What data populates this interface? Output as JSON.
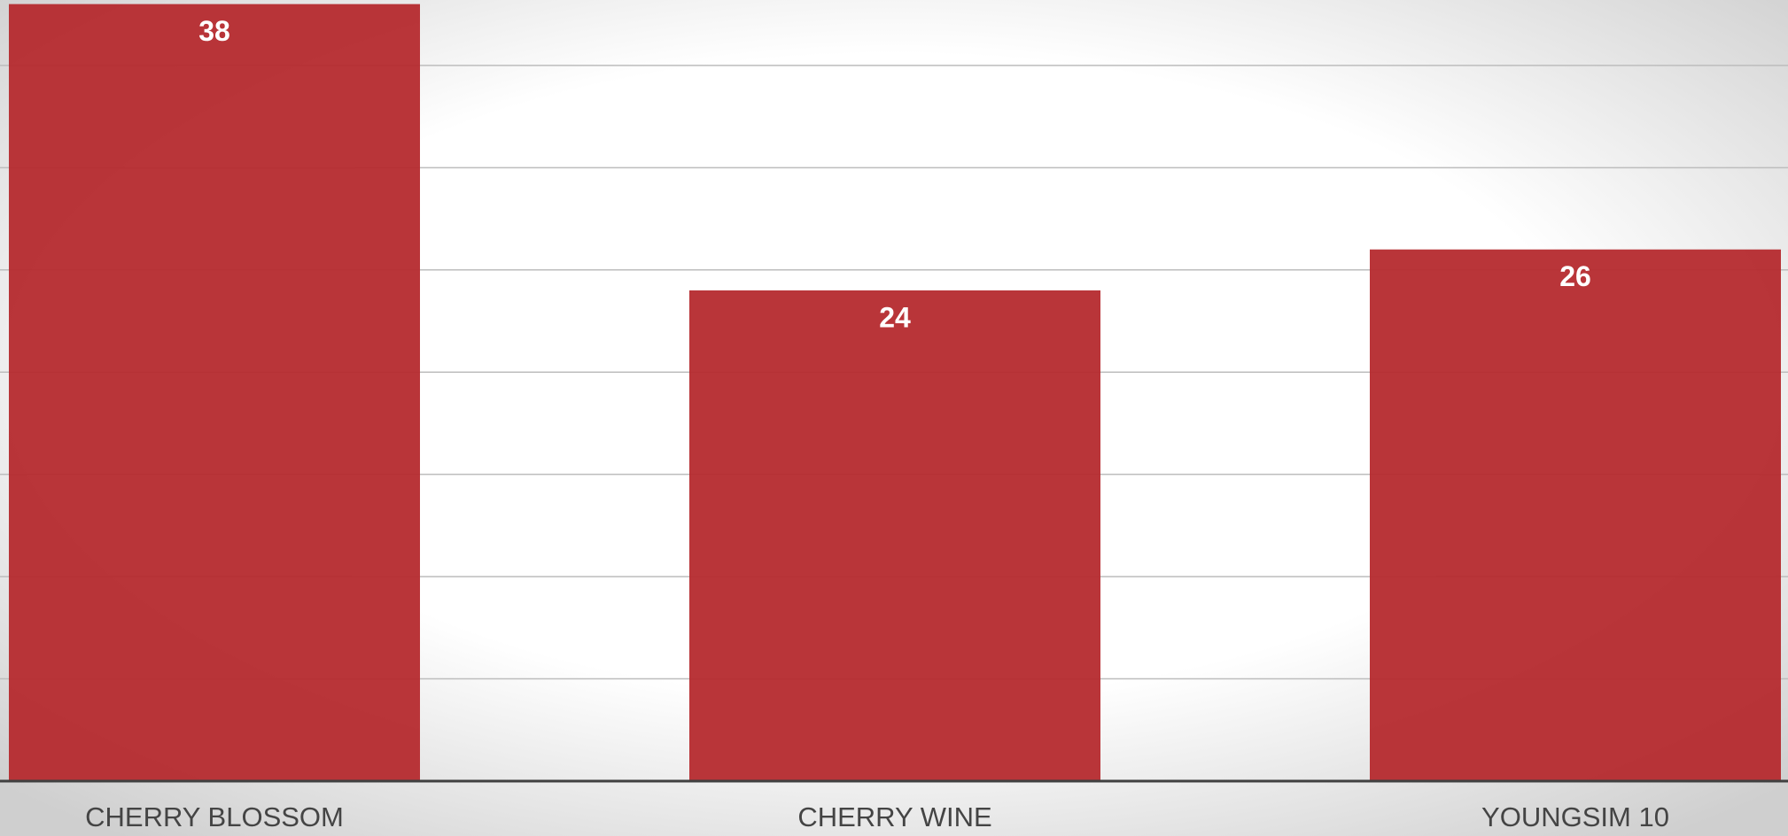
{
  "chart_data": {
    "type": "bar",
    "categories": [
      "CHERRY BLOSSOM",
      "CHERRY WINE",
      "YOUNGSIM 10"
    ],
    "values": [
      38,
      24,
      26
    ],
    "color": "#b52a2e",
    "ylim": [
      0,
      38.2
    ],
    "yticks": [
      5,
      10,
      15,
      20,
      25,
      30,
      35
    ],
    "grid": true
  }
}
